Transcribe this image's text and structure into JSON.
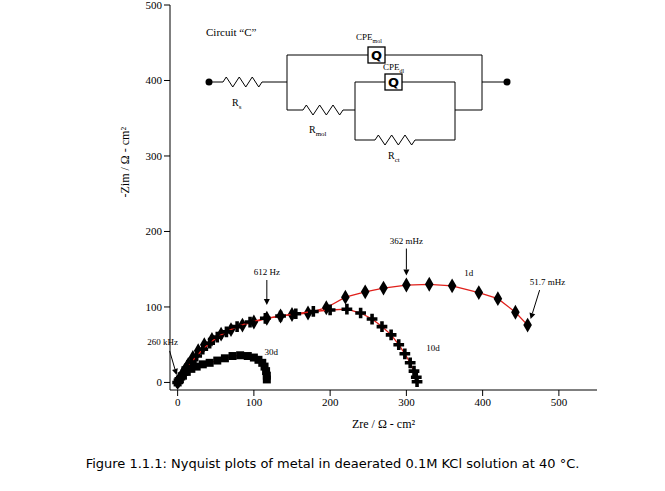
{
  "chart_data": {
    "type": "scatter",
    "x_label": "Zre / Ω - cm²",
    "y_label": "-Zim / Ω - cm²",
    "xlim": [
      -10,
      550
    ],
    "xticks": [
      0,
      100,
      200,
      300,
      400,
      500
    ],
    "ylim": [
      -10,
      500
    ],
    "yticks": [
      0,
      100,
      200,
      300,
      400,
      500
    ],
    "grid": false,
    "series": [
      {
        "name": "1d",
        "color": "#000000",
        "marker": "diamond",
        "x": [
          0,
          2,
          5,
          9,
          14,
          20,
          27,
          35,
          45,
          57,
          70,
          85,
          100,
          117,
          135,
          150,
          171,
          195,
          220,
          246,
          270,
          300,
          330,
          360,
          395,
          420,
          443,
          459
        ],
        "values": [
          0,
          4,
          9,
          16,
          24,
          33,
          42,
          50,
          57,
          64,
          70,
          76,
          80,
          85,
          88,
          90,
          92,
          99,
          113,
          120,
          125,
          129,
          130,
          128,
          119,
          111,
          93,
          76
        ]
      },
      {
        "name": "10d",
        "color": "#000000",
        "marker": "cross",
        "x": [
          0,
          3,
          7,
          12,
          18,
          25,
          33,
          42,
          52,
          64,
          78,
          95,
          115,
          135,
          155,
          178,
          200,
          222,
          240,
          255,
          268,
          280,
          290,
          298,
          305,
          310,
          313,
          314
        ],
        "values": [
          0,
          5,
          11,
          19,
          27,
          35,
          44,
          52,
          60,
          67,
          74,
          80,
          85,
          88,
          91,
          94,
          96,
          97,
          92,
          84,
          74,
          63,
          50,
          38,
          26,
          15,
          7,
          1
        ]
      },
      {
        "name": "30d",
        "color": "#000000",
        "marker": "square",
        "x": [
          0,
          3,
          7,
          12,
          18,
          25,
          33,
          42,
          52,
          62,
          72,
          82,
          92,
          100,
          106,
          111,
          114,
          116,
          117,
          117
        ],
        "values": [
          0,
          4,
          9,
          14,
          18,
          21,
          24,
          26,
          29,
          32,
          35,
          36,
          35,
          33,
          30,
          26,
          21,
          15,
          9,
          4
        ]
      }
    ],
    "annotations": [
      {
        "text": "260 kHz",
        "x": 0,
        "y": 2
      },
      {
        "text": "612 Hz",
        "x": 117,
        "y": 92
      },
      {
        "text": "362 mHz",
        "x": 300,
        "y": 131
      },
      {
        "text": "51.7 mHz",
        "x": 459,
        "y": 76
      }
    ],
    "circuit": {
      "title": "Circuit “C”",
      "rs": {
        "label": "R",
        "sub": "s"
      },
      "cpe_mol": {
        "symbol": "Q",
        "label": "CPE",
        "sub": "mol"
      },
      "rmol": {
        "label": "R",
        "sub": "mol"
      },
      "cpe_dl": {
        "symbol": "Q",
        "label": "CPE",
        "sub": "dl"
      },
      "rct": {
        "label": "R",
        "sub": "ct"
      }
    },
    "caption": "Figure 1.1.1: Nyquist plots of metal in deaerated 0.1M KCl solution at 40 °C."
  }
}
